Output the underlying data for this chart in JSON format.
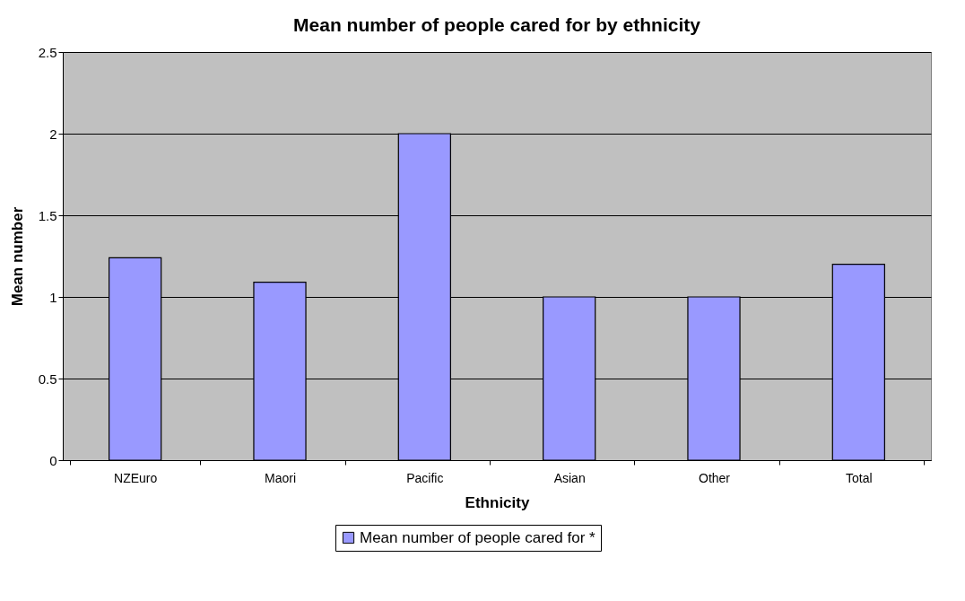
{
  "chart_data": {
    "type": "bar",
    "title": "Mean number of people cared for by ethnicity",
    "xlabel": "Ethnicity",
    "ylabel": "Mean number",
    "categories": [
      "NZEuro",
      "Maori",
      "Pacific",
      "Asian",
      "Other",
      "Total"
    ],
    "series": [
      {
        "name": "Mean number of people cared for *",
        "color": "#9999ff",
        "values": [
          1.24,
          1.09,
          2.0,
          1.0,
          1.0,
          1.2
        ]
      }
    ],
    "ylim": [
      0,
      2.5
    ],
    "yticks": [
      0,
      0.5,
      1,
      1.5,
      2,
      2.5
    ],
    "grid": "y",
    "legend": "bottom"
  }
}
